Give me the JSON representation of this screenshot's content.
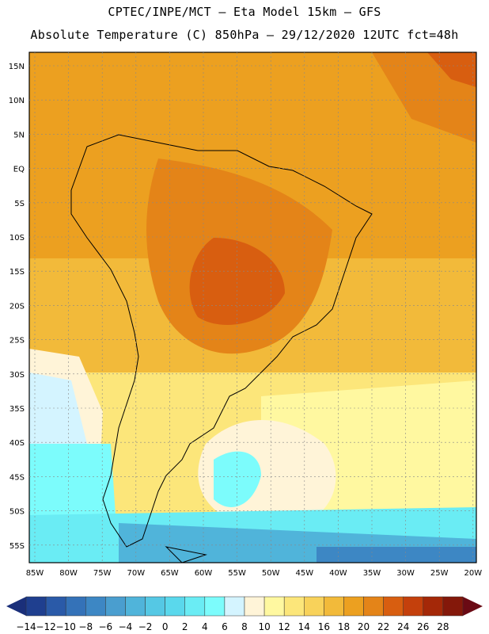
{
  "header": {
    "line1": "CPTEC/INPE/MCT –  Eta Model 15km – GFS",
    "line2": "Absolute Temperature (C) 850hPa – 29/12/2020 12UTC fct=48h"
  },
  "axes": {
    "lat_labels": [
      "15N",
      "10N",
      "5N",
      "EQ",
      "5S",
      "10S",
      "15S",
      "20S",
      "25S",
      "30S",
      "35S",
      "40S",
      "45S",
      "50S",
      "55S"
    ],
    "lon_labels": [
      "85W",
      "80W",
      "75W",
      "70W",
      "65W",
      "60W",
      "55W",
      "50W",
      "45W",
      "40W",
      "35W",
      "30W",
      "25W",
      "20W"
    ]
  },
  "colorbar": {
    "labels": [
      "-14",
      "-12",
      "-10",
      "-8",
      "-6",
      "-4",
      "-2",
      "0",
      "2",
      "4",
      "6",
      "8",
      "10",
      "12",
      "14",
      "16",
      "18",
      "20",
      "22",
      "24",
      "26",
      "28"
    ],
    "colors": [
      "#1f3f8f",
      "#2a5aa8",
      "#3472b8",
      "#3d87c4",
      "#4a9ecf",
      "#50b4da",
      "#55c8e4",
      "#5ad8ec",
      "#6aecf4",
      "#7cfcfc",
      "#d4f4ff",
      "#fff4d8",
      "#fff8a0",
      "#fce67a",
      "#f8d25a",
      "#f2ba3a",
      "#eca020",
      "#e48418",
      "#d85e10",
      "#c4400c",
      "#a42808",
      "#84180a"
    ],
    "under_color": "#1a2f7a",
    "over_color": "#6a0a14"
  }
}
